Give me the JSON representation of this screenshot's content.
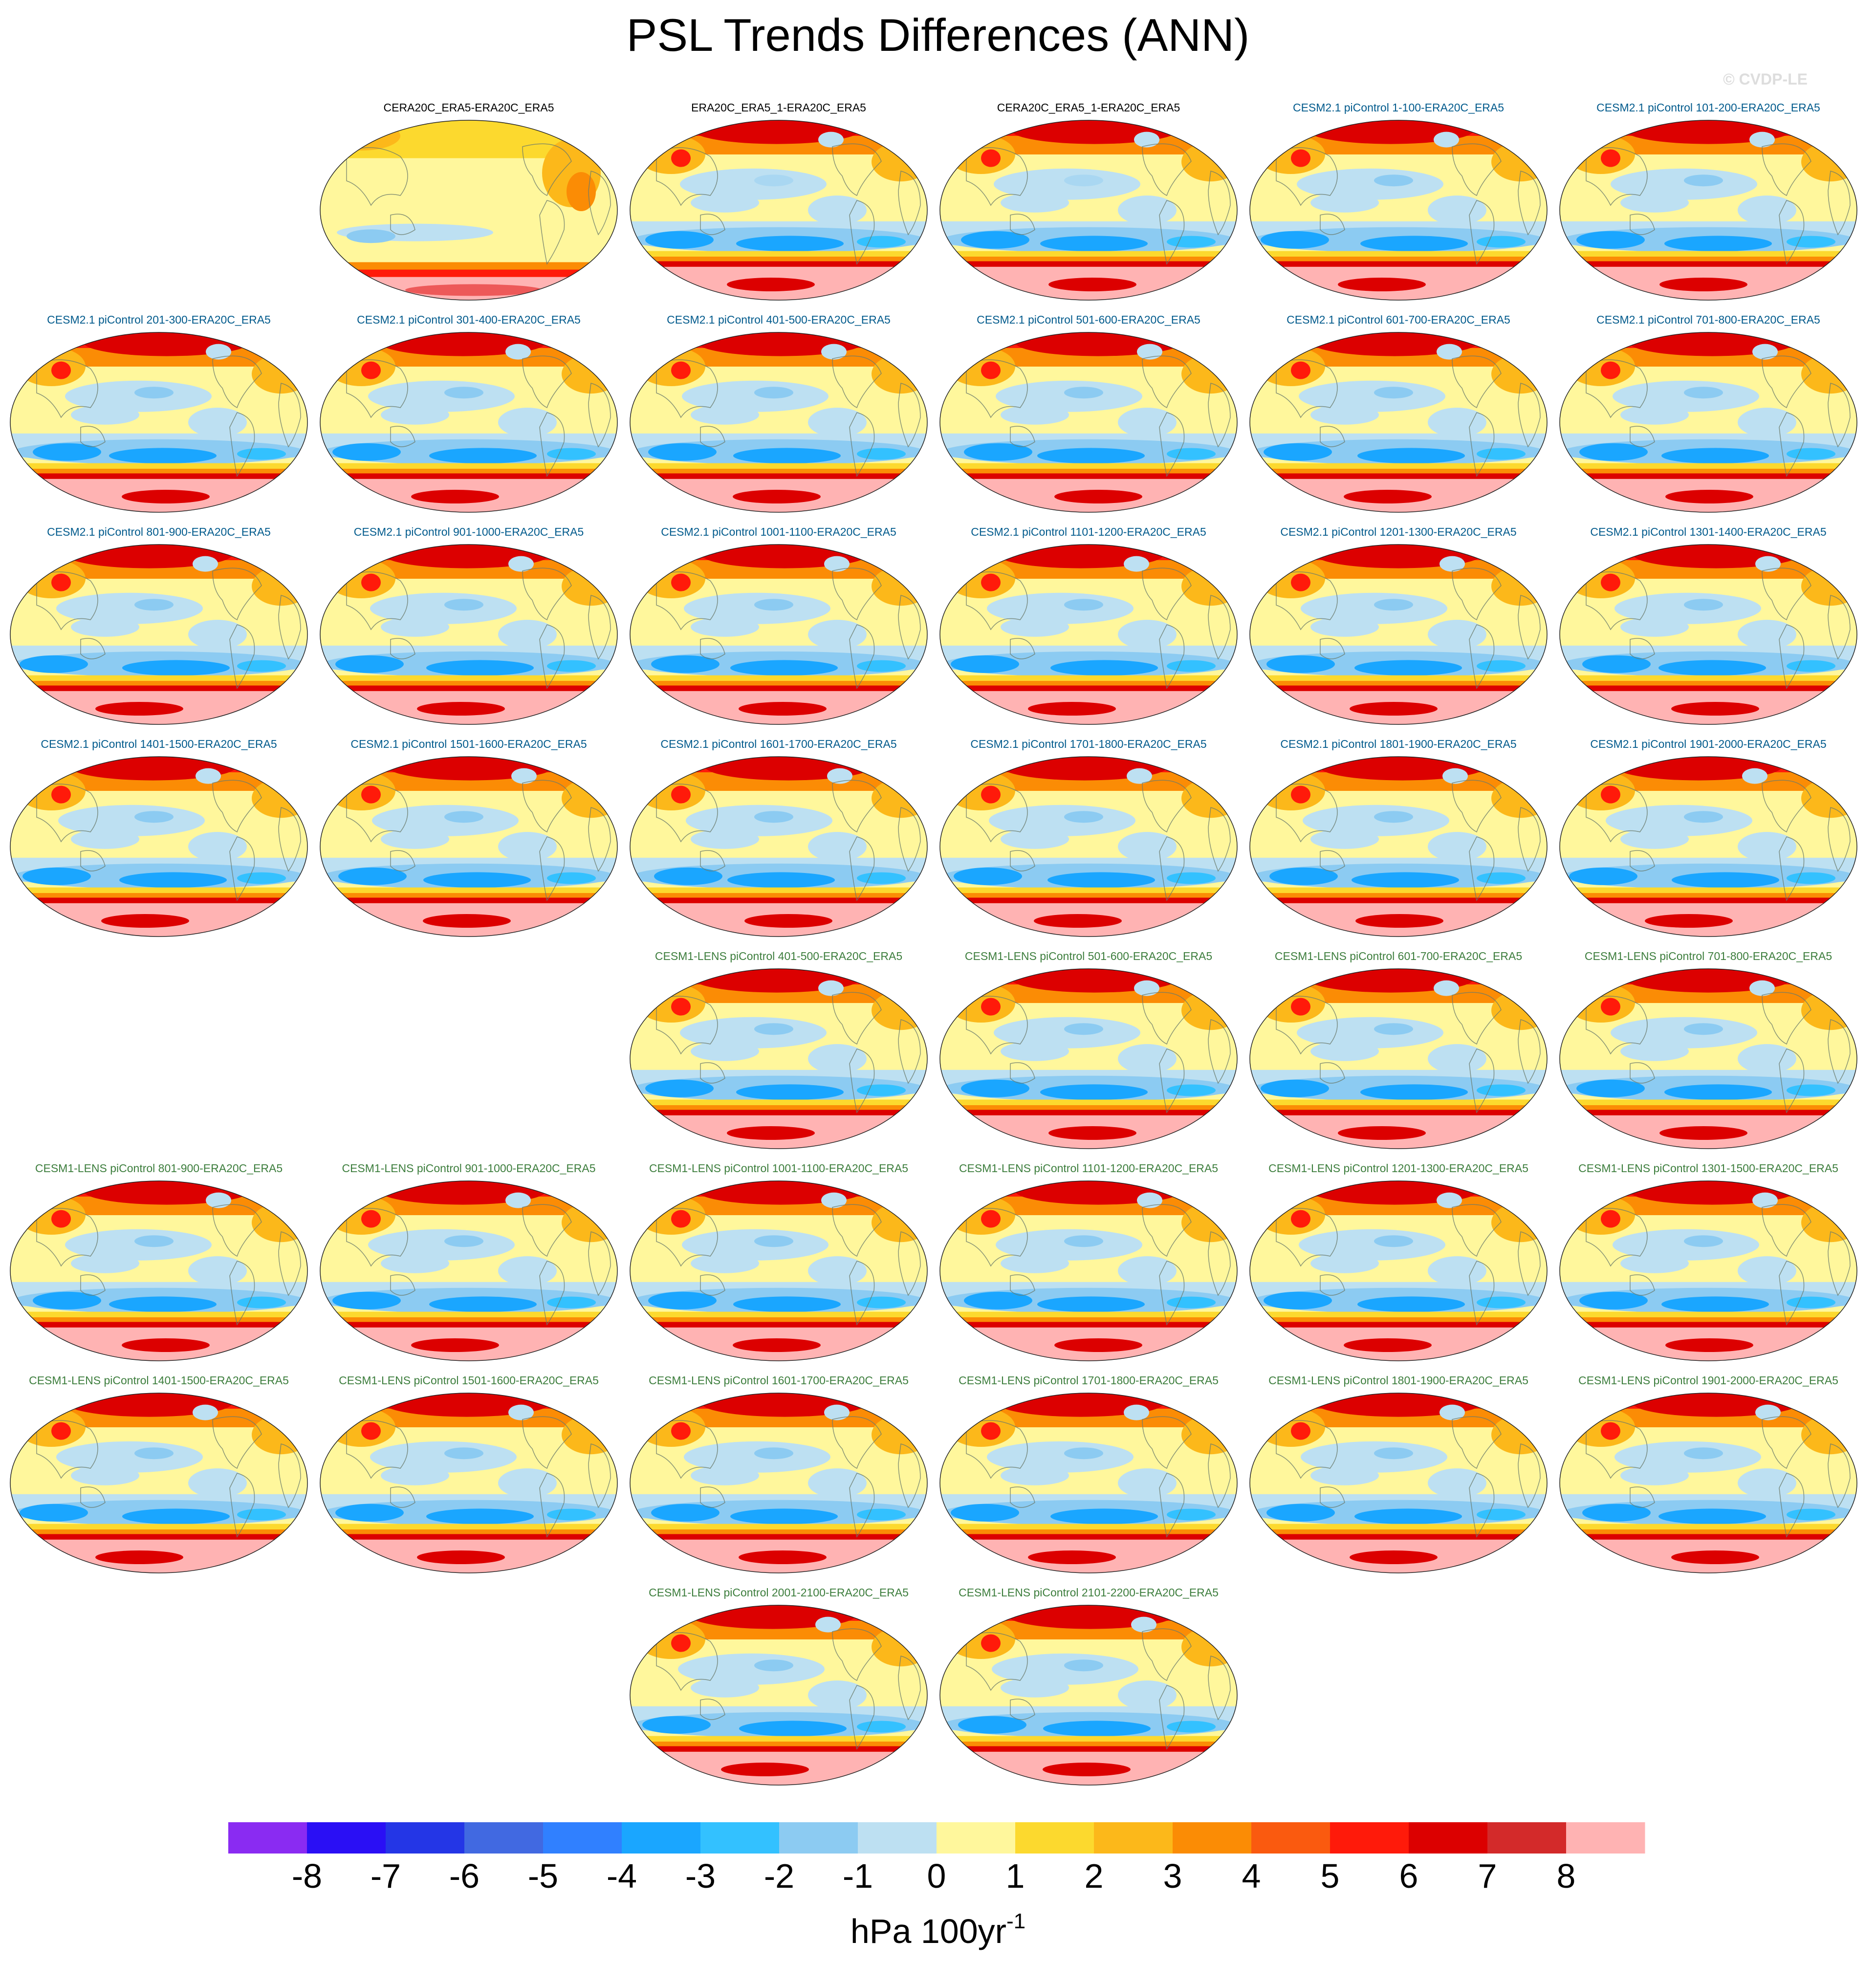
{
  "title": "PSL Trends Differences (ANN)",
  "watermark": "© CVDP-LE",
  "title_colors": {
    "obs": "#000000",
    "cesm2": "#005a8c",
    "cesm1": "#3c7d3c"
  },
  "panels": [
    {
      "label": "CERA20C_ERA5-ERA20C_ERA5",
      "group": "obs",
      "row": 0,
      "col": 1,
      "variant": "cera20c"
    },
    {
      "label": "ERA20C_ERA5_1-ERA20C_ERA5",
      "group": "obs",
      "row": 0,
      "col": 2,
      "variant": "era20c"
    },
    {
      "label": "CERA20C_ERA5_1-ERA20C_ERA5",
      "group": "obs",
      "row": 0,
      "col": 3,
      "variant": "era20c"
    },
    {
      "label": "CESM2.1 piControl 1-100-ERA20C_ERA5",
      "group": "cesm2",
      "row": 0,
      "col": 4,
      "variant": "model"
    },
    {
      "label": "CESM2.1 piControl 101-200-ERA20C_ERA5",
      "group": "cesm2",
      "row": 0,
      "col": 5,
      "variant": "model"
    },
    {
      "label": "CESM2.1 piControl 201-300-ERA20C_ERA5",
      "group": "cesm2",
      "row": 1,
      "col": 0,
      "variant": "model"
    },
    {
      "label": "CESM2.1 piControl 301-400-ERA20C_ERA5",
      "group": "cesm2",
      "row": 1,
      "col": 1,
      "variant": "model"
    },
    {
      "label": "CESM2.1 piControl 401-500-ERA20C_ERA5",
      "group": "cesm2",
      "row": 1,
      "col": 2,
      "variant": "model"
    },
    {
      "label": "CESM2.1 piControl 501-600-ERA20C_ERA5",
      "group": "cesm2",
      "row": 1,
      "col": 3,
      "variant": "model"
    },
    {
      "label": "CESM2.1 piControl 601-700-ERA20C_ERA5",
      "group": "cesm2",
      "row": 1,
      "col": 4,
      "variant": "model"
    },
    {
      "label": "CESM2.1 piControl 701-800-ERA20C_ERA5",
      "group": "cesm2",
      "row": 1,
      "col": 5,
      "variant": "model"
    },
    {
      "label": "CESM2.1 piControl 801-900-ERA20C_ERA5",
      "group": "cesm2",
      "row": 2,
      "col": 0,
      "variant": "model"
    },
    {
      "label": "CESM2.1 piControl 901-1000-ERA20C_ERA5",
      "group": "cesm2",
      "row": 2,
      "col": 1,
      "variant": "model"
    },
    {
      "label": "CESM2.1 piControl 1001-1100-ERA20C_ERA5",
      "group": "cesm2",
      "row": 2,
      "col": 2,
      "variant": "model"
    },
    {
      "label": "CESM2.1 piControl 1101-1200-ERA20C_ERA5",
      "group": "cesm2",
      "row": 2,
      "col": 3,
      "variant": "model"
    },
    {
      "label": "CESM2.1 piControl 1201-1300-ERA20C_ERA5",
      "group": "cesm2",
      "row": 2,
      "col": 4,
      "variant": "model"
    },
    {
      "label": "CESM2.1 piControl 1301-1400-ERA20C_ERA5",
      "group": "cesm2",
      "row": 2,
      "col": 5,
      "variant": "model"
    },
    {
      "label": "CESM2.1 piControl 1401-1500-ERA20C_ERA5",
      "group": "cesm2",
      "row": 3,
      "col": 0,
      "variant": "model"
    },
    {
      "label": "CESM2.1 piControl 1501-1600-ERA20C_ERA5",
      "group": "cesm2",
      "row": 3,
      "col": 1,
      "variant": "model"
    },
    {
      "label": "CESM2.1 piControl 1601-1700-ERA20C_ERA5",
      "group": "cesm2",
      "row": 3,
      "col": 2,
      "variant": "model"
    },
    {
      "label": "CESM2.1 piControl 1701-1800-ERA20C_ERA5",
      "group": "cesm2",
      "row": 3,
      "col": 3,
      "variant": "model"
    },
    {
      "label": "CESM2.1 piControl 1801-1900-ERA20C_ERA5",
      "group": "cesm2",
      "row": 3,
      "col": 4,
      "variant": "model"
    },
    {
      "label": "CESM2.1 piControl 1901-2000-ERA20C_ERA5",
      "group": "cesm2",
      "row": 3,
      "col": 5,
      "variant": "model"
    },
    {
      "label": "CESM1-LENS piControl 401-500-ERA20C_ERA5",
      "group": "cesm1",
      "row": 4,
      "col": 2,
      "variant": "model"
    },
    {
      "label": "CESM1-LENS piControl 501-600-ERA20C_ERA5",
      "group": "cesm1",
      "row": 4,
      "col": 3,
      "variant": "model"
    },
    {
      "label": "CESM1-LENS piControl 601-700-ERA20C_ERA5",
      "group": "cesm1",
      "row": 4,
      "col": 4,
      "variant": "model"
    },
    {
      "label": "CESM1-LENS piControl 701-800-ERA20C_ERA5",
      "group": "cesm1",
      "row": 4,
      "col": 5,
      "variant": "model"
    },
    {
      "label": "CESM1-LENS piControl 801-900-ERA20C_ERA5",
      "group": "cesm1",
      "row": 5,
      "col": 0,
      "variant": "model"
    },
    {
      "label": "CESM1-LENS piControl 901-1000-ERA20C_ERA5",
      "group": "cesm1",
      "row": 5,
      "col": 1,
      "variant": "model"
    },
    {
      "label": "CESM1-LENS piControl 1001-1100-ERA20C_ERA5",
      "group": "cesm1",
      "row": 5,
      "col": 2,
      "variant": "model"
    },
    {
      "label": "CESM1-LENS piControl 1101-1200-ERA20C_ERA5",
      "group": "cesm1",
      "row": 5,
      "col": 3,
      "variant": "model"
    },
    {
      "label": "CESM1-LENS piControl 1201-1300-ERA20C_ERA5",
      "group": "cesm1",
      "row": 5,
      "col": 4,
      "variant": "model"
    },
    {
      "label": "CESM1-LENS piControl 1301-1500-ERA20C_ERA5",
      "group": "cesm1",
      "row": 5,
      "col": 5,
      "variant": "model"
    },
    {
      "label": "CESM1-LENS piControl 1401-1500-ERA20C_ERA5",
      "group": "cesm1",
      "row": 6,
      "col": 0,
      "variant": "model"
    },
    {
      "label": "CESM1-LENS piControl 1501-1600-ERA20C_ERA5",
      "group": "cesm1",
      "row": 6,
      "col": 1,
      "variant": "model"
    },
    {
      "label": "CESM1-LENS piControl 1601-1700-ERA20C_ERA5",
      "group": "cesm1",
      "row": 6,
      "col": 2,
      "variant": "model"
    },
    {
      "label": "CESM1-LENS piControl 1701-1800-ERA20C_ERA5",
      "group": "cesm1",
      "row": 6,
      "col": 3,
      "variant": "model"
    },
    {
      "label": "CESM1-LENS piControl 1801-1900-ERA20C_ERA5",
      "group": "cesm1",
      "row": 6,
      "col": 4,
      "variant": "model"
    },
    {
      "label": "CESM1-LENS piControl 1901-2000-ERA20C_ERA5",
      "group": "cesm1",
      "row": 6,
      "col": 5,
      "variant": "model"
    },
    {
      "label": "CESM1-LENS piControl 2001-2100-ERA20C_ERA5",
      "group": "cesm1",
      "row": 7,
      "col": 2,
      "variant": "model"
    },
    {
      "label": "CESM1-LENS piControl 2101-2200-ERA20C_ERA5",
      "group": "cesm1",
      "row": 7,
      "col": 3,
      "variant": "model"
    }
  ],
  "colorbar": {
    "colors": [
      "#8a2bf2",
      "#2a0ff5",
      "#2436e6",
      "#4169e1",
      "#3080ff",
      "#1aa6ff",
      "#33c1ff",
      "#8ccbf2",
      "#bde0f2",
      "#fff79c",
      "#fcd92e",
      "#fcb81a",
      "#fb8c05",
      "#fa5a0f",
      "#ff1a0a",
      "#dc0000",
      "#d32a2a",
      "#ffb3b3"
    ],
    "labels": [
      "-8",
      "-7",
      "-6",
      "-5",
      "-4",
      "-3",
      "-2",
      "-1",
      "0",
      "1",
      "2",
      "3",
      "4",
      "5",
      "6",
      "7",
      "8"
    ],
    "units": "hPa 100yr",
    "units_sup": "-1"
  }
}
